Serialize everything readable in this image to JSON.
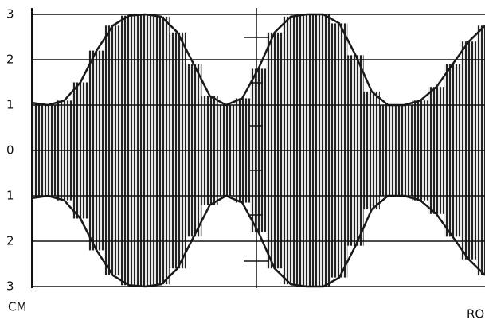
{
  "chart_data": {
    "type": "area",
    "y_unit_label": "CM",
    "annotation": "RO",
    "ylim": [
      -3,
      3
    ],
    "yticks": [
      {
        "value": -3,
        "label": "3"
      },
      {
        "value": -2,
        "label": "2"
      },
      {
        "value": -1,
        "label": "1"
      },
      0,
      1,
      2,
      3
    ],
    "grid": true,
    "categories": [
      null,
      null,
      null,
      null,
      null,
      null,
      null,
      null,
      null,
      null,
      null,
      null,
      null,
      null,
      null,
      null,
      null,
      null,
      null,
      null,
      null,
      null,
      null,
      null,
      null,
      null,
      null,
      null,
      null
    ],
    "series": [
      {
        "color": "#1a1a1a",
        "values": [
          1.05,
          1.0,
          1.1,
          1.5,
          2.2,
          2.75,
          2.97,
          3.0,
          2.95,
          2.6,
          1.9,
          1.2,
          1.0,
          1.15,
          1.8,
          2.6,
          2.95,
          3.0,
          3.0,
          2.8,
          2.1,
          1.3,
          1.0,
          1.0,
          1.1,
          1.4,
          1.9,
          2.4,
          2.75
        ]
      },
      {
        "color": "#1a1a1a",
        "values": [
          -1.05,
          -1.0,
          -1.1,
          -1.5,
          -2.2,
          -2.75,
          -2.97,
          -3.0,
          -2.95,
          -2.6,
          -1.9,
          -1.2,
          -1.0,
          -1.15,
          -1.8,
          -2.6,
          -2.95,
          -3.0,
          -3.0,
          -2.8,
          -2.1,
          -1.3,
          -1.0,
          -1.0,
          -1.1,
          -1.4,
          -1.9,
          -2.4,
          -2.75
        ]
      }
    ]
  }
}
